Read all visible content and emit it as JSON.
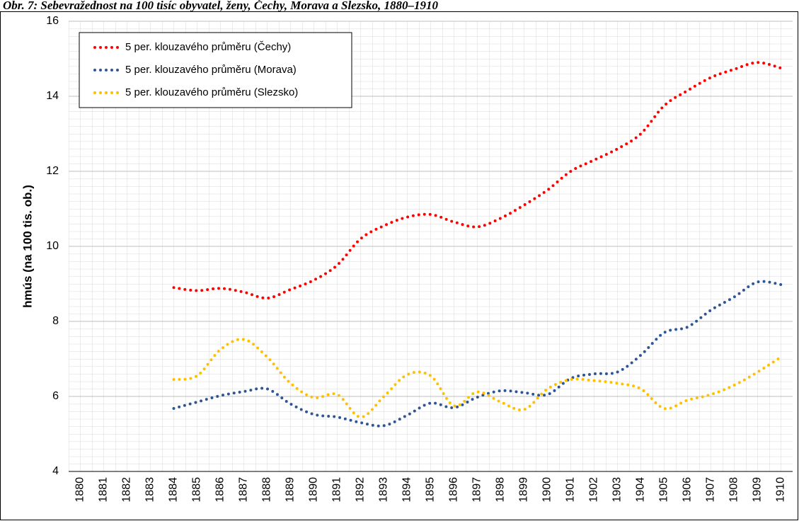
{
  "chart_data": {
    "type": "line",
    "title": "Obr. 7: Sebevražednost na 100 tisíc obyvatel, ženy, Čechy, Morava a Slezsko, 1880–1910",
    "y_label": "hmús (na 100 tis. ob.)",
    "categories": [
      "1880",
      "1881",
      "1882",
      "1883",
      "1884",
      "1885",
      "1886",
      "1887",
      "1888",
      "1889",
      "1890",
      "1891",
      "1892",
      "1893",
      "1894",
      "1895",
      "1896",
      "1897",
      "1898",
      "1899",
      "1900",
      "1901",
      "1902",
      "1903",
      "1904",
      "1905",
      "1906",
      "1907",
      "1908",
      "1909",
      "1910"
    ],
    "series": [
      {
        "name": "5 per. klouzavého průměru (Čechy)",
        "color": "#ff0000",
        "values": [
          null,
          null,
          null,
          null,
          8.9,
          8.82,
          8.88,
          8.78,
          8.62,
          8.85,
          9.1,
          9.5,
          10.2,
          10.55,
          10.78,
          10.85,
          10.65,
          10.52,
          10.75,
          11.1,
          11.5,
          12.0,
          12.3,
          12.6,
          13.0,
          13.75,
          14.15,
          14.5,
          14.72,
          14.9,
          14.75
        ]
      },
      {
        "name": "5 per. klouzavého průměru (Morava)",
        "color": "#2f5597",
        "values": [
          null,
          null,
          null,
          null,
          5.68,
          5.85,
          6.02,
          6.13,
          6.2,
          5.8,
          5.52,
          5.45,
          5.3,
          5.22,
          5.5,
          5.82,
          5.7,
          5.98,
          6.15,
          6.1,
          6.05,
          6.48,
          6.6,
          6.65,
          7.1,
          7.7,
          7.85,
          8.3,
          8.65,
          9.05,
          8.98
        ]
      },
      {
        "name": "5 per. klouzavého průměru (Slezsko)",
        "color": "#ffc000",
        "values": [
          null,
          null,
          null,
          null,
          6.45,
          6.55,
          7.25,
          7.52,
          7.05,
          6.35,
          5.97,
          6.05,
          5.45,
          6.0,
          6.58,
          6.55,
          5.75,
          6.12,
          5.85,
          5.65,
          6.2,
          6.45,
          6.42,
          6.35,
          6.2,
          5.68,
          5.9,
          6.05,
          6.3,
          6.65,
          7.05
        ]
      }
    ],
    "ylim": [
      4,
      16
    ],
    "yticks": [
      4,
      6,
      8,
      10,
      12,
      14,
      16
    ],
    "grid": true,
    "legend": "top-left",
    "smooth": true,
    "line_style": "dotted"
  }
}
